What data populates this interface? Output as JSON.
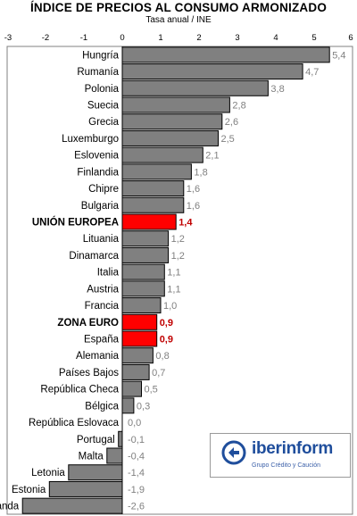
{
  "header": {
    "title": "ÍNDICE DE PRECIOS AL CONSUMO  ARMONIZADO",
    "subtitle": "Tasa anual / INE"
  },
  "logo": {
    "name": "iberinform",
    "tagline": "Grupo Crédito y Caución"
  },
  "colors": {
    "bar_default": "#808080",
    "bar_highlight": "#ff0000",
    "label_default": "#808080",
    "label_highlight": "#c00000"
  },
  "chart_data": {
    "type": "bar",
    "orientation": "horizontal",
    "title": "ÍNDICE DE PRECIOS AL CONSUMO  ARMONIZADO",
    "subtitle": "Tasa anual / INE",
    "xlim": [
      -3,
      6
    ],
    "x_ticks": [
      "-3",
      "-2",
      "-1",
      "0",
      "1",
      "2",
      "3",
      "4",
      "5",
      "6"
    ],
    "grid": false,
    "categories": [
      "Hungría",
      "Rumanía",
      "Polonia",
      "Suecia",
      "Grecia",
      "Luxemburgo",
      "Eslovenia",
      "Finlandia",
      "Chipre",
      "Bulgaria",
      "UNIÓN EUROPEA",
      "Lituania",
      "Dinamarca",
      "Italia",
      "Austria",
      "Francia",
      "ZONA EURO",
      "España",
      "Alemania",
      "Países Bajos",
      "República Checa",
      "Bélgica",
      "República Eslovaca",
      "Portugal",
      "Malta",
      "Letonia",
      "Estonia",
      "Irlanda"
    ],
    "values": [
      5.4,
      4.7,
      3.8,
      2.8,
      2.6,
      2.5,
      2.1,
      1.8,
      1.6,
      1.6,
      1.4,
      1.2,
      1.2,
      1.1,
      1.1,
      1.0,
      0.9,
      0.9,
      0.8,
      0.7,
      0.5,
      0.3,
      0.0,
      -0.1,
      -0.4,
      -1.4,
      -1.9,
      -2.6
    ],
    "value_labels": [
      "5,4",
      "4,7",
      "3,8",
      "2,8",
      "2,6",
      "2,5",
      "2,1",
      "1,8",
      "1,6",
      "1,6",
      "1,4",
      "1,2",
      "1,2",
      "1,1",
      "1,1",
      "1,0",
      "0,9",
      "0,9",
      "0,8",
      "0,7",
      "0,5",
      "0,3",
      "0,0",
      "-0,1",
      "-0,4",
      "-1,4",
      "-1,9",
      "-2,6"
    ],
    "highlighted": [
      "UNIÓN EUROPEA",
      "ZONA EURO",
      "España"
    ],
    "bold_labels": [
      "UNIÓN EUROPEA",
      "ZONA EURO"
    ]
  }
}
